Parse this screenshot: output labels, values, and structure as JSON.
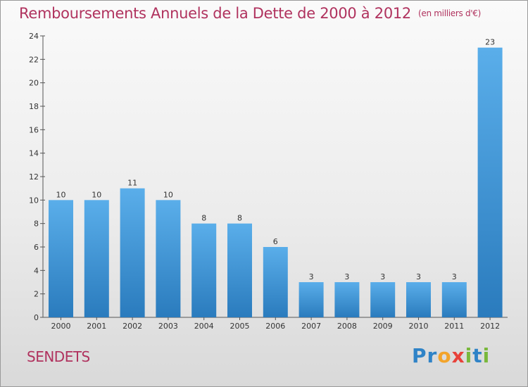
{
  "header": {
    "title": "Remboursements Annuels de la Dette de 2000 à 2012",
    "subtitle": "(en milliers d'€)"
  },
  "footer": {
    "commune": "SENDETS",
    "brand": "Proxiti"
  },
  "colors": {
    "accent": "#b0325e",
    "bar_top": "#5aaeea",
    "bar_bottom": "#2a7bbd"
  },
  "chart_data": {
    "type": "bar",
    "categories": [
      "2000",
      "2001",
      "2002",
      "2003",
      "2004",
      "2005",
      "2006",
      "2007",
      "2008",
      "2009",
      "2010",
      "2011",
      "2012"
    ],
    "values": [
      10,
      10,
      11,
      10,
      8,
      8,
      6,
      3,
      3,
      3,
      3,
      3,
      23
    ],
    "ylim": [
      0,
      24
    ],
    "yticks": [
      0,
      2,
      4,
      6,
      8,
      10,
      12,
      14,
      16,
      18,
      20,
      22,
      24
    ],
    "grid": false,
    "title": "Remboursements Annuels de la Dette de 2000 à 2012",
    "subtitle": "(en milliers d'€)"
  }
}
